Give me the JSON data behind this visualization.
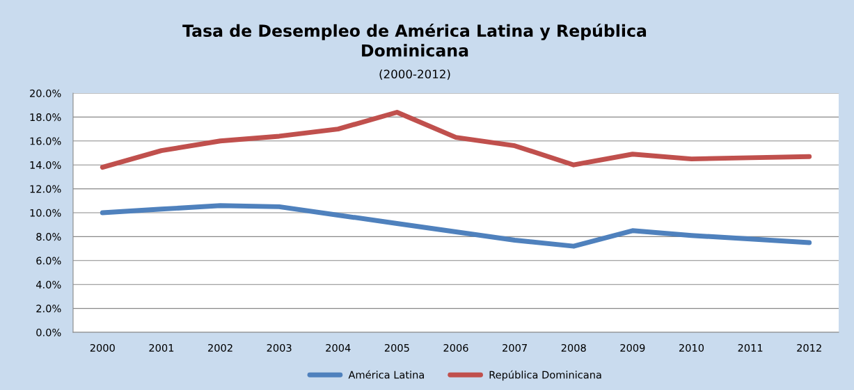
{
  "chart_data": {
    "type": "line",
    "title": "Tasa de Desempleo de América Latina y República\nDominicana",
    "subtitle": "(2000-2012)",
    "categories": [
      "2000",
      "2001",
      "2002",
      "2003",
      "2004",
      "2005",
      "2006",
      "2007",
      "2008",
      "2009",
      "2010",
      "2011",
      "2012"
    ],
    "series": [
      {
        "name": "América Latina",
        "color": "#4f81bd",
        "values": [
          10.0,
          10.3,
          10.6,
          10.5,
          9.8,
          9.1,
          8.4,
          7.7,
          7.2,
          8.5,
          8.1,
          7.8,
          7.5
        ]
      },
      {
        "name": "República Dominicana",
        "color": "#c0504d",
        "values": [
          13.8,
          15.2,
          16.0,
          16.4,
          17.0,
          18.4,
          16.3,
          15.6,
          14.0,
          14.9,
          14.5,
          14.6,
          14.7
        ]
      }
    ],
    "ylim": [
      0,
      20
    ],
    "yticks": [
      {
        "value": 0,
        "label": "0.0%"
      },
      {
        "value": 2,
        "label": "2.0%"
      },
      {
        "value": 4,
        "label": "4.0%"
      },
      {
        "value": 6,
        "label": "6.0%"
      },
      {
        "value": 8,
        "label": "8.0%"
      },
      {
        "value": 10,
        "label": "10.0%"
      },
      {
        "value": 12,
        "label": "12.0%"
      },
      {
        "value": 14,
        "label": "14.0%"
      },
      {
        "value": 16,
        "label": "16.0%"
      },
      {
        "value": 18,
        "label": "18.0%"
      },
      {
        "value": 20,
        "label": "20.0%"
      }
    ],
    "grid": "y",
    "legend": "bottom",
    "marker": "none",
    "line_style": "solid"
  }
}
